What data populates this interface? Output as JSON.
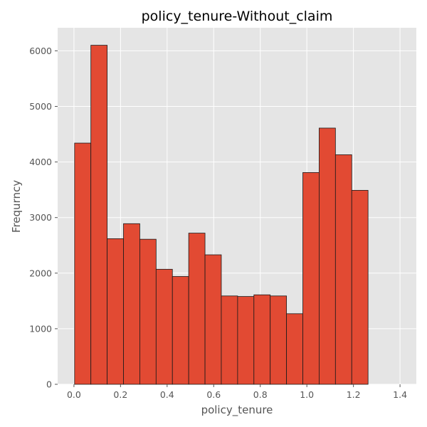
{
  "chart_data": {
    "type": "bar",
    "title": "policy_tenure-Without_claim",
    "xlabel": "policy_tenure",
    "ylabel": "Frequrncy",
    "xlim": [
      -0.07,
      1.47
    ],
    "ylim": [
      0,
      6415
    ],
    "x_ticks": [
      0.0,
      0.2,
      0.4,
      0.6,
      0.8,
      1.0,
      1.2,
      1.4
    ],
    "x_tick_labels": [
      "0.0",
      "0.2",
      "0.4",
      "0.6",
      "0.8",
      "1.0",
      "1.2",
      "1.4"
    ],
    "y_ticks": [
      0,
      1000,
      2000,
      3000,
      4000,
      5000,
      6000
    ],
    "y_tick_labels": [
      "0",
      "1000",
      "2000",
      "3000",
      "4000",
      "5000",
      "6000"
    ],
    "grid": true,
    "bin_edges": [
      0.0027,
      0.0727,
      0.1427,
      0.2127,
      0.2827,
      0.3527,
      0.4227,
      0.4927,
      0.5627,
      0.6327,
      0.7027,
      0.7727,
      0.8427,
      0.9127,
      0.9827,
      1.0527,
      1.1227,
      1.1927,
      1.2627,
      1.3327,
      1.4027
    ],
    "values": [
      4340,
      6100,
      2620,
      2890,
      2610,
      2070,
      1940,
      2720,
      2330,
      1590,
      1580,
      1610,
      1590,
      1270,
      3810,
      4610,
      4130,
      3490,
      0,
      0
    ],
    "colors": {
      "bar_fill": "#E24A33",
      "bar_edge": "#1a1a1a",
      "plot_background": "#E5E5E5",
      "grid": "#FFFFFF"
    }
  }
}
